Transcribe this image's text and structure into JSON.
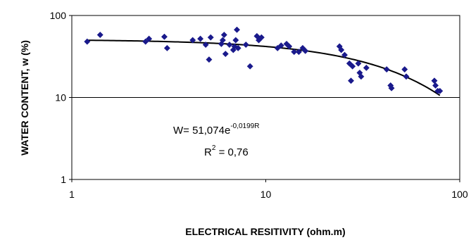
{
  "chart_data": {
    "type": "scatter",
    "xlabel": "ELECTRICAL RESITIVITY (ohm.m)",
    "ylabel": "WATER CONTENT, w (%)",
    "x_scale": "log",
    "y_scale": "log",
    "xlim": [
      1,
      100
    ],
    "ylim": [
      1,
      100
    ],
    "x_ticks": [
      "1",
      "10",
      "100"
    ],
    "y_ticks": [
      "1",
      "10",
      "100"
    ],
    "grid": "horizontal gridline at 10",
    "marker_color": "#1a1a8c",
    "curve_color": "#000000",
    "annotation": {
      "equation_base": "W= 51,074e",
      "equation_exponent": "-0,0199R",
      "r2_label": "R",
      "r2_power": "2",
      "r2_value": " = 0,76"
    },
    "trendline": {
      "form": "exponential",
      "a": 51.074,
      "b": -0.0199
    },
    "series": [
      {
        "points": [
          [
            1.2,
            48
          ],
          [
            1.4,
            58
          ],
          [
            2.4,
            48
          ],
          [
            2.5,
            52
          ],
          [
            3.0,
            55
          ],
          [
            3.1,
            40
          ],
          [
            4.2,
            50
          ],
          [
            4.6,
            52
          ],
          [
            4.9,
            44
          ],
          [
            5.1,
            29
          ],
          [
            5.2,
            54
          ],
          [
            5.9,
            45
          ],
          [
            6.0,
            50
          ],
          [
            6.1,
            58
          ],
          [
            6.2,
            34
          ],
          [
            6.5,
            44
          ],
          [
            6.8,
            38
          ],
          [
            6.9,
            42
          ],
          [
            7.0,
            50
          ],
          [
            7.1,
            67
          ],
          [
            7.2,
            40
          ],
          [
            7.9,
            44
          ],
          [
            8.3,
            24
          ],
          [
            9.0,
            56
          ],
          [
            9.2,
            50
          ],
          [
            9.5,
            54
          ],
          [
            11.5,
            40
          ],
          [
            12.0,
            43
          ],
          [
            12.8,
            45
          ],
          [
            13.2,
            42
          ],
          [
            14.0,
            36
          ],
          [
            14.8,
            36
          ],
          [
            15.5,
            40
          ],
          [
            16.0,
            37
          ],
          [
            24.0,
            42
          ],
          [
            24.5,
            38
          ],
          [
            25.5,
            33
          ],
          [
            27.0,
            26
          ],
          [
            27.5,
            16
          ],
          [
            28.0,
            24
          ],
          [
            30.0,
            26
          ],
          [
            30.5,
            20
          ],
          [
            31.0,
            18
          ],
          [
            33.0,
            23
          ],
          [
            42.0,
            22
          ],
          [
            44.0,
            14
          ],
          [
            44.5,
            13
          ],
          [
            52.0,
            22
          ],
          [
            53.0,
            18
          ],
          [
            74.0,
            16
          ],
          [
            75.0,
            14
          ],
          [
            77.0,
            12
          ],
          [
            79.0,
            12
          ]
        ]
      }
    ]
  }
}
